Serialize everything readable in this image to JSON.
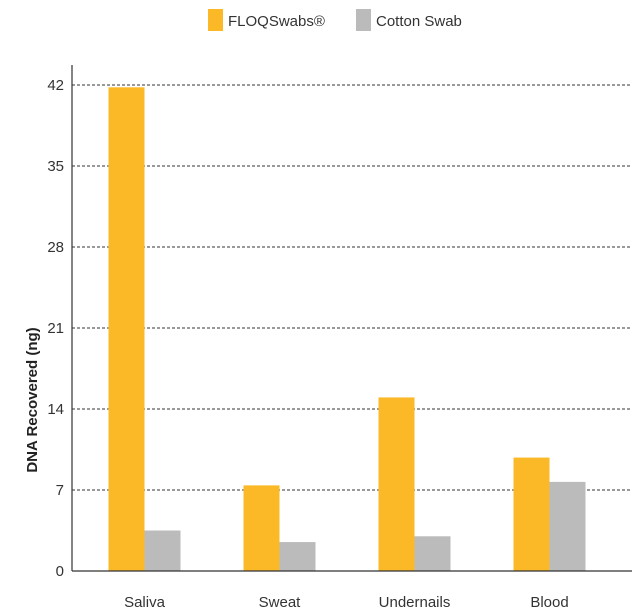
{
  "chart_data": {
    "type": "bar",
    "categories": [
      "Saliva",
      "Sweat",
      "Undernails",
      "Blood"
    ],
    "series": [
      {
        "name": "FLOQSwabs®",
        "values": [
          41.8,
          7.4,
          15.0,
          9.8
        ],
        "color": "#fbb927"
      },
      {
        "name": "Cotton Swab",
        "values": [
          3.5,
          2.5,
          3.0,
          7.7
        ],
        "color": "#bcbbbc"
      }
    ],
    "ylabel": "DNA Recovered (ng)",
    "xlabel": "",
    "ylim": [
      0,
      42
    ],
    "yticks": [
      0,
      7,
      14,
      21,
      28,
      35,
      42
    ],
    "grid": true,
    "legend_position": "top-center"
  }
}
